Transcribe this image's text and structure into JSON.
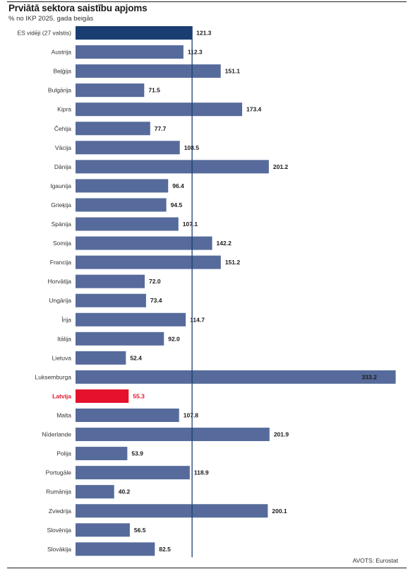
{
  "header": {
    "title": "Prviātā sektora saistību apjoms",
    "subtitle": "% no IKP 2025. gada beigās"
  },
  "footer": {
    "source": "AVOTS: Eurostat"
  },
  "colors": {
    "bar": "#566b9b",
    "average": "#1b3e72",
    "highlight": "#e4122a",
    "reference_line": "#1b3e72"
  },
  "chart_data": {
    "type": "bar",
    "orientation": "horizontal",
    "title": "Prviātā sektora saistību apjoms",
    "subtitle": "% no IKP 2025. gada beigās",
    "unit": "% no IKP",
    "xlim": [
      0,
      335
    ],
    "reference_line": 121.3,
    "grid": false,
    "categories": [
      "ES vidēji (27 valstis)",
      "Austrija",
      "Beļģija",
      "Bulgārija",
      "Kipra",
      "Čehija",
      "Vācija",
      "Dānija",
      "Igaunija",
      "Grieķija",
      "Spānija",
      "Somija",
      "Francija",
      "Horvātija",
      "Ungārija",
      "Īrija",
      "Itālija",
      "Lietuva",
      "Luksemburga",
      "Latvija",
      "Malta",
      "Nīderlande",
      "Polija",
      "Portugāle",
      "Rumānija",
      "Zviedrija",
      "Slovēnija",
      "Slovākija"
    ],
    "values": [
      121.3,
      112.3,
      151.1,
      71.5,
      173.4,
      77.7,
      108.5,
      201.2,
      96.4,
      94.5,
      107.1,
      142.2,
      151.2,
      72.0,
      73.4,
      114.7,
      92.0,
      52.4,
      333.2,
      55.3,
      107.8,
      201.9,
      53.9,
      118.9,
      40.2,
      200.1,
      56.5,
      82.5
    ],
    "value_labels": [
      "121.3",
      "112.3",
      "151.1",
      "71.5",
      "173.4",
      "77.7",
      "108.5",
      "201.2",
      "96.4",
      "94.5",
      "107.1",
      "142.2",
      "151.2",
      "72.0",
      "73.4",
      "114.7",
      "92.0",
      "52.4",
      "333.2",
      "55.3",
      "107.8",
      "201.9",
      "53.9",
      "118.9",
      "40.2",
      "200.1",
      "56.5",
      "82.5"
    ],
    "highlight": [
      "Latvija"
    ],
    "average": [
      "ES vidēji (27 valstis)"
    ]
  }
}
